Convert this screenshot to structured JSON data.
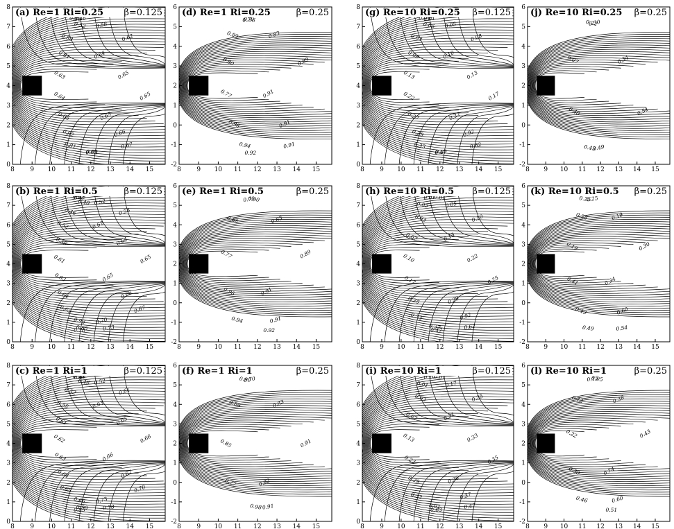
{
  "panels": [
    {
      "id": "a",
      "title": "(a) Re=1 Ri=0.25",
      "beta": "β=0.125",
      "yticks": [
        "0",
        "1",
        "2",
        "3",
        "4",
        "5",
        "6",
        "7",
        "8"
      ],
      "xticks": [
        "8",
        "9",
        "10",
        "11",
        "12",
        "13",
        "14",
        "15"
      ],
      "labels": [
        "0.46",
        "0.58",
        "0.62",
        "0.64",
        "0.65",
        "0.65",
        "0.65",
        "0.66",
        "0.67",
        "0.69",
        "0.73",
        "0.81",
        "0.92",
        "0.65",
        "0.64",
        "0.63",
        "0.61",
        "0.58",
        "0.52",
        "0.46"
      ]
    },
    {
      "id": "d",
      "title": "(d) Re=1 Ri=0.25",
      "beta": "β=0.25",
      "yticks": [
        "-2",
        "-1",
        "0",
        "1",
        "2",
        "3",
        "4",
        "5",
        "6"
      ],
      "xticks": [
        "8",
        "9",
        "10",
        "11",
        "12",
        "13",
        "14",
        "15"
      ],
      "labels": [
        "0.70",
        "0.83",
        "0.89",
        "0.91",
        "0.91",
        "0.91",
        "0.92",
        "0.94",
        "0.96",
        "0.77",
        "0.80",
        "0.89",
        "0.86"
      ]
    },
    {
      "id": "g",
      "title": "(g) Re=10 Ri=0.25",
      "beta": "β=0.125",
      "yticks": [
        "0",
        "1",
        "2",
        "3",
        "4",
        "5",
        "6",
        "7",
        "8"
      ],
      "xticks": [
        "8",
        "9",
        "10",
        "11",
        "12",
        "13",
        "14",
        "15"
      ],
      "labels": [
        "0.01",
        "0.05",
        "0.08",
        "0.10",
        "0.13",
        "0.17",
        "0.22",
        "0.92",
        "0.62",
        "0.47",
        "0.37",
        "0.33",
        "0.29",
        "0.27",
        "0.22",
        "0.13",
        "0.08",
        "0.03",
        "0.05",
        "0.01"
      ]
    },
    {
      "id": "j",
      "title": "(j) Re=10 Ri=0.25",
      "beta": "β=0.25",
      "yticks": [
        "-2",
        "-1",
        "0",
        "1",
        "2",
        "3",
        "4",
        "5",
        "6"
      ],
      "xticks": [
        "8",
        "9",
        "10",
        "11",
        "12",
        "13",
        "14",
        "15"
      ],
      "labels": [
        "0.30",
        "0.34",
        "0.54",
        "0.49",
        "0.43",
        "0.40",
        "0.07",
        "0.22"
      ]
    },
    {
      "id": "b",
      "title": "(b) Re=1 Ri=0.5",
      "beta": "β=0.125",
      "yticks": [
        "0",
        "1",
        "2",
        "3",
        "4",
        "5",
        "6",
        "7",
        "8"
      ],
      "xticks": [
        "8",
        "9",
        "10",
        "11",
        "12",
        "13",
        "14",
        "15"
      ],
      "labels": [
        "0.46",
        "0.52",
        "0.58",
        "0.62",
        "0.64",
        "0.65",
        "0.65",
        "0.66",
        "0.67",
        "0.70",
        "0.73",
        "0.78",
        "0.85",
        "0.93",
        "0.65",
        "0.64",
        "0.63",
        "0.61",
        "0.58",
        "0.52",
        "0.46",
        "0.40",
        "0.62"
      ]
    },
    {
      "id": "e",
      "title": "(e) Re=1 Ri=0.5",
      "beta": "β=0.25",
      "yticks": [
        "-2",
        "-1",
        "0",
        "1",
        "2",
        "3",
        "4",
        "5",
        "6"
      ],
      "xticks": [
        "8",
        "9",
        "10",
        "11",
        "12",
        "13",
        "14",
        "15"
      ],
      "labels": [
        "0.70",
        "0.83",
        "0.89",
        "0.91",
        "0.91",
        "0.92",
        "0.94",
        "0.96",
        "0.77",
        "0.88",
        "0.90"
      ]
    },
    {
      "id": "h",
      "title": "(h) Re=10 Ri=0.5",
      "beta": "β=0.125",
      "yticks": [
        "0",
        "1",
        "2",
        "3",
        "4",
        "5",
        "6",
        "7",
        "8"
      ],
      "xticks": [
        "8",
        "9",
        "10",
        "11",
        "12",
        "13",
        "14",
        "15"
      ],
      "labels": [
        "0.01",
        "0.05",
        "0.10",
        "0.13",
        "0.22",
        "0.25",
        "0.29",
        "0.92",
        "0.62",
        "0.47",
        "0.37",
        "0.33",
        "0.25",
        "0.17",
        "0.10",
        "0.07",
        "0.03",
        "0.05",
        "0.01"
      ]
    },
    {
      "id": "k",
      "title": "(k) Re=10 Ri=0.5",
      "beta": "β=0.25",
      "yticks": [
        "-2",
        "-1",
        "0",
        "1",
        "2",
        "3",
        "4",
        "5",
        "6"
      ],
      "xticks": [
        "8",
        "9",
        "10",
        "11",
        "12",
        "13",
        "14",
        "15"
      ],
      "labels": [
        "0.25",
        "0.19",
        "0.30",
        "0.34",
        "0.60",
        "0.54",
        "0.49",
        "0.43",
        "0.41",
        "0.19",
        "0.25",
        "0.25"
      ]
    },
    {
      "id": "c",
      "title": "(c) Re=1 Ri=1",
      "beta": "β=0.125",
      "yticks": [
        "0",
        "1",
        "2",
        "3",
        "4",
        "5",
        "6",
        "7",
        "8"
      ],
      "xticks": [
        "8",
        "9",
        "10",
        "11",
        "12",
        "13",
        "14",
        "15"
      ],
      "labels": [
        "0.46",
        "0.52",
        "0.61",
        "0.63",
        "0.65",
        "0.66",
        "0.66",
        "0.67",
        "0.70",
        "0.73",
        "0.78",
        "0.85",
        "0.90",
        "0.66",
        "0.65",
        "0.64",
        "0.63",
        "0.62",
        "0.61",
        "0.58",
        "0.52",
        "0.46",
        "0.40"
      ]
    },
    {
      "id": "f",
      "title": "(f) Re=1 Ri=1",
      "beta": "β=0.25",
      "yticks": [
        "-2",
        "-1",
        "0",
        "1",
        "2",
        "3",
        "4",
        "5",
        "6"
      ],
      "xticks": [
        "8",
        "9",
        "10",
        "11",
        "12",
        "13",
        "14",
        "15"
      ],
      "labels": [
        "0.70",
        "0.83",
        "0.91",
        "0.92",
        "0.91",
        "0.98",
        "0.77",
        "0.85",
        "0.89",
        "0.90"
      ]
    },
    {
      "id": "i",
      "title": "(i) Re=10 Ri=1",
      "beta": "β=0.125",
      "yticks": [
        "0",
        "1",
        "2",
        "3",
        "4",
        "5",
        "6",
        "7",
        "8"
      ],
      "xticks": [
        "8",
        "9",
        "10",
        "11",
        "12",
        "13",
        "14",
        "15"
      ],
      "labels": [
        "0.10",
        "0.17",
        "0.25",
        "0.31",
        "0.33",
        "0.35",
        "0.36",
        "0.37",
        "0.47",
        "0.63",
        "0.91",
        "0.33",
        "0.29",
        "0.22",
        "0.13",
        "0.07",
        "0.03",
        "0.01",
        "0.01"
      ]
    },
    {
      "id": "l",
      "title": "(l) Re=10 Ri=1",
      "beta": "β=0.25",
      "yticks": [
        "-2",
        "-1",
        "0",
        "1",
        "2",
        "3",
        "4",
        "5",
        "6"
      ],
      "xticks": [
        "8",
        "9",
        "10",
        "11",
        "12",
        "13",
        "14",
        "15"
      ],
      "labels": [
        "0.15",
        "0.38",
        "0.43",
        "0.74",
        "0.60",
        "0.51",
        "0.46",
        "0.30",
        "0.22",
        "0.12",
        "0.05"
      ]
    }
  ]
}
